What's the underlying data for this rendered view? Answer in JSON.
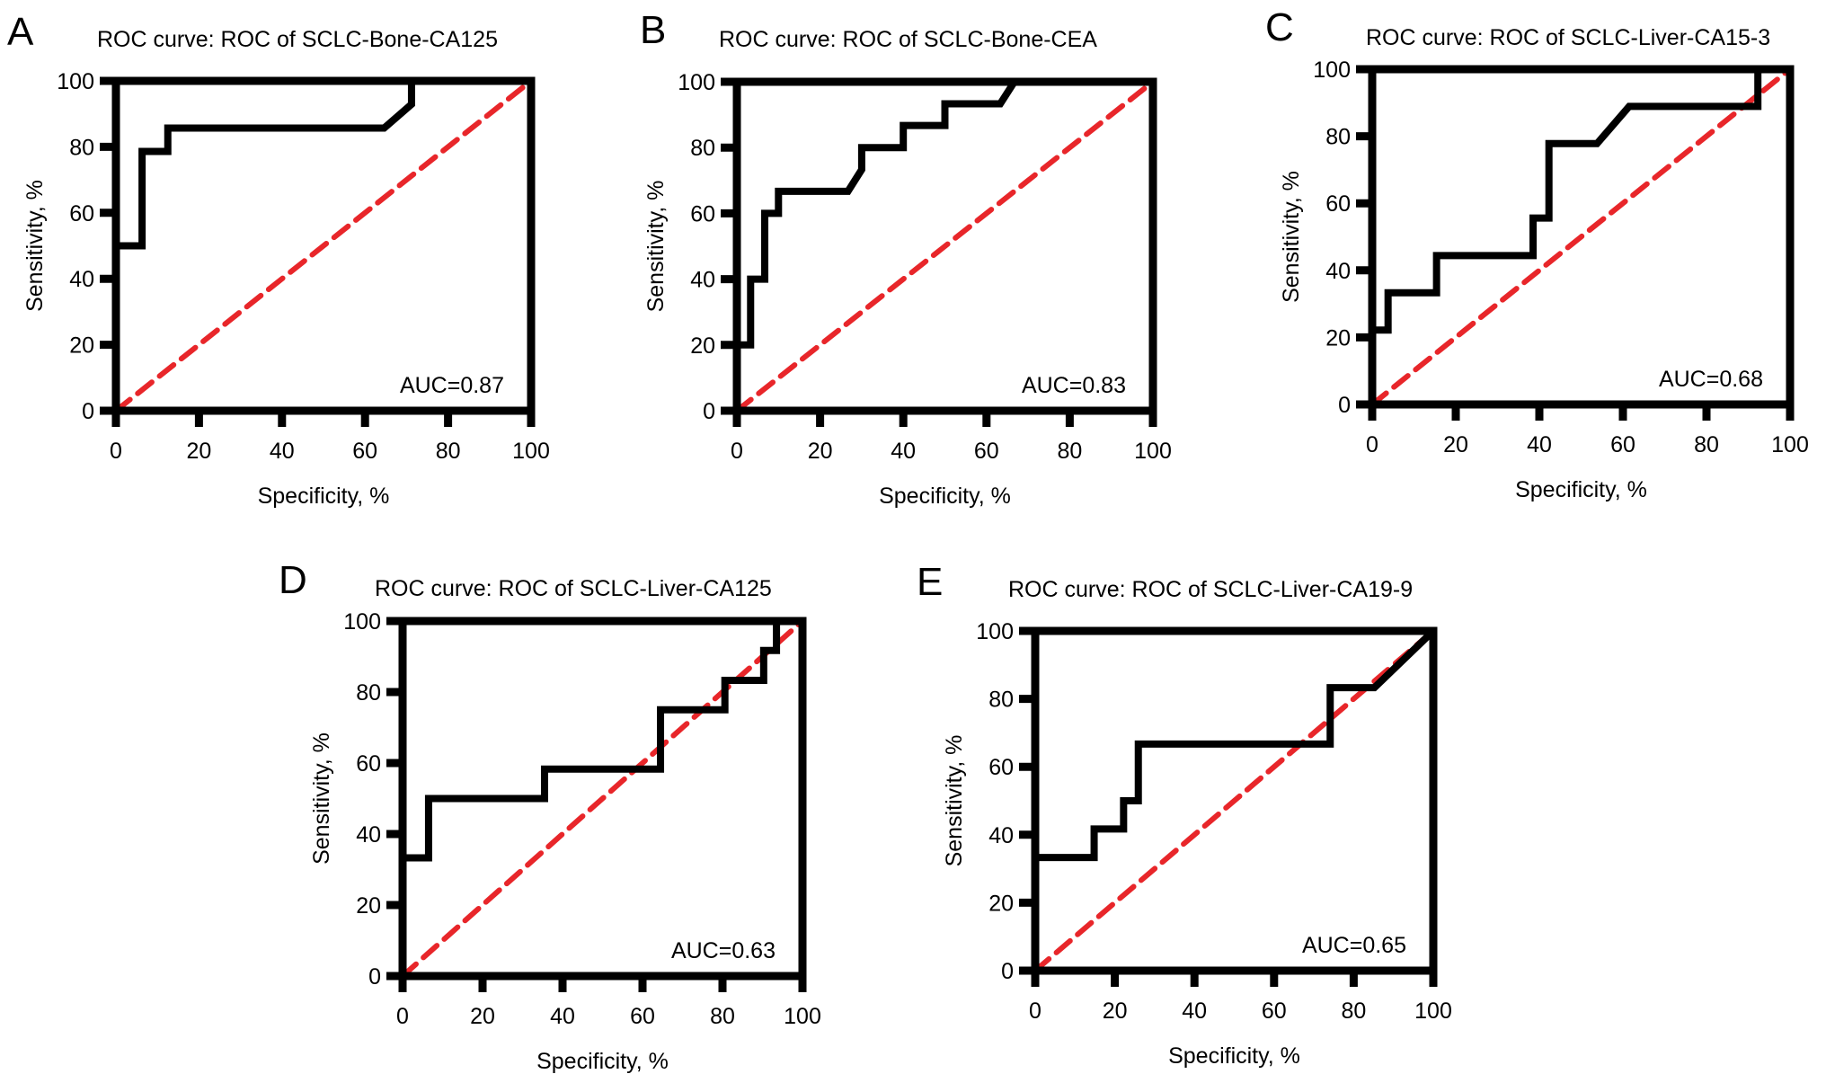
{
  "chart_data": [
    {
      "panel": "A",
      "type": "line",
      "title": "ROC curve: ROC of SCLC-Bone-CA125",
      "xlabel": "Specificity, %",
      "ylabel": "Sensitivity, %",
      "xlim": [
        0,
        100
      ],
      "ylim": [
        0,
        100
      ],
      "xticks": [
        0,
        20,
        40,
        60,
        80,
        100
      ],
      "yticks": [
        0,
        20,
        40,
        60,
        80,
        100
      ],
      "annotation": "AUC=0.87",
      "grid": false,
      "series": [
        {
          "name": "ROC curve",
          "color": "#000000",
          "x": [
            0,
            0,
            6.3,
            6.3,
            12.5,
            12.5,
            64.6,
            71.2,
            71.2
          ],
          "y": [
            0,
            50,
            50,
            78.6,
            78.6,
            85.7,
            85.7,
            92.9,
            100
          ]
        },
        {
          "name": "Reference line",
          "color": "#e8262a",
          "dashed": true,
          "x": [
            0,
            100
          ],
          "y": [
            0,
            100
          ]
        }
      ]
    },
    {
      "panel": "B",
      "type": "line",
      "title": "ROC curve: ROC of SCLC-Bone-CEA",
      "xlabel": "Specificity, %",
      "ylabel": "Sensitivity, %",
      "xlim": [
        0,
        100
      ],
      "ylim": [
        0,
        100
      ],
      "xticks": [
        0,
        20,
        40,
        60,
        80,
        100
      ],
      "yticks": [
        0,
        20,
        40,
        60,
        80,
        100
      ],
      "annotation": "AUC=0.83",
      "grid": false,
      "series": [
        {
          "name": "ROC curve",
          "color": "#000000",
          "x": [
            0,
            0,
            3.3,
            3.3,
            6.7,
            6.7,
            10,
            10,
            26.7,
            30,
            30,
            40,
            40,
            50,
            50,
            63.3,
            66.7
          ],
          "y": [
            0,
            20,
            20,
            40,
            40,
            60,
            60,
            66.7,
            66.7,
            73.3,
            80,
            80,
            86.7,
            86.7,
            93.3,
            93.3,
            100
          ]
        },
        {
          "name": "Reference line",
          "color": "#e8262a",
          "dashed": true,
          "x": [
            0,
            100
          ],
          "y": [
            0,
            100
          ]
        }
      ]
    },
    {
      "panel": "C",
      "type": "line",
      "title": "ROC curve: ROC of SCLC-Liver-CA15-3",
      "xlabel": "Specificity, %",
      "ylabel": "Sensitivity, %",
      "xlim": [
        0,
        100
      ],
      "ylim": [
        0,
        100
      ],
      "xticks": [
        0,
        20,
        40,
        60,
        80,
        100
      ],
      "yticks": [
        0,
        20,
        40,
        60,
        80,
        100
      ],
      "annotation": "AUC=0.68",
      "grid": false,
      "series": [
        {
          "name": "ROC curve",
          "color": "#000000",
          "x": [
            0,
            0,
            3.8,
            3.8,
            15.4,
            15.4,
            38.5,
            38.5,
            42.3,
            42.3,
            53.8,
            61.5,
            92.3,
            92.3
          ],
          "y": [
            0,
            22.2,
            22.2,
            33.3,
            33.3,
            44.4,
            44.4,
            55.6,
            55.6,
            77.8,
            77.8,
            88.9,
            88.9,
            100
          ]
        },
        {
          "name": "Reference line",
          "color": "#e8262a",
          "dashed": true,
          "x": [
            0,
            100
          ],
          "y": [
            0,
            100
          ]
        }
      ]
    },
    {
      "panel": "D",
      "type": "line",
      "title": "ROC curve: ROC of SCLC-Liver-CA125",
      "xlabel": "Specificity, %",
      "ylabel": "Sensitivity, %",
      "xlim": [
        0,
        100
      ],
      "ylim": [
        0,
        100
      ],
      "xticks": [
        0,
        20,
        40,
        60,
        80,
        100
      ],
      "yticks": [
        0,
        20,
        40,
        60,
        80,
        100
      ],
      "annotation": "AUC=0.63",
      "grid": false,
      "series": [
        {
          "name": "ROC curve",
          "color": "#000000",
          "x": [
            0,
            0,
            6.5,
            6.5,
            35.5,
            35.5,
            64.5,
            64.5,
            80.6,
            80.6,
            90.3,
            90.3,
            93.5,
            93.5
          ],
          "y": [
            0,
            33.3,
            33.3,
            50,
            50,
            58.3,
            58.3,
            75,
            75,
            83.3,
            83.3,
            91.7,
            91.7,
            100
          ]
        },
        {
          "name": "Reference line",
          "color": "#e8262a",
          "dashed": true,
          "x": [
            0,
            100
          ],
          "y": [
            0,
            100
          ]
        }
      ]
    },
    {
      "panel": "E",
      "type": "line",
      "title": "ROC curve: ROC of SCLC-Liver-CA19-9",
      "xlabel": "Specificity, %",
      "ylabel": "Sensitivity, %",
      "xlim": [
        0,
        100
      ],
      "ylim": [
        0,
        100
      ],
      "xticks": [
        0,
        20,
        40,
        60,
        80,
        100
      ],
      "yticks": [
        0,
        20,
        40,
        60,
        80,
        100
      ],
      "annotation": "AUC=0.65",
      "grid": false,
      "series": [
        {
          "name": "ROC curve",
          "color": "#000000",
          "x": [
            0,
            0,
            14.8,
            14.8,
            22.2,
            22.2,
            25.9,
            25.9,
            74.1,
            74.1,
            85.2,
            100
          ],
          "y": [
            0,
            33.3,
            33.3,
            41.7,
            41.7,
            50,
            50,
            66.7,
            66.7,
            83.3,
            83.3,
            100
          ]
        },
        {
          "name": "Reference line",
          "color": "#e8262a",
          "dashed": true,
          "x": [
            0,
            100
          ],
          "y": [
            0,
            100
          ]
        }
      ]
    }
  ]
}
